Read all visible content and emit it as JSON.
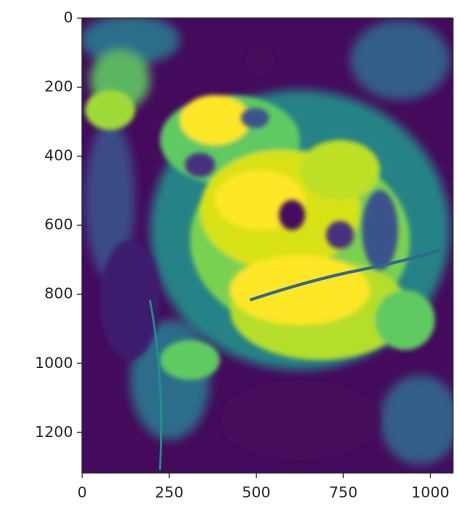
{
  "chart_data": {
    "type": "image",
    "xlim": [
      -0.5,
      1065
    ],
    "ylim": [
      1318,
      -0.5
    ],
    "xticks": [
      0,
      250,
      500,
      750,
      1000
    ],
    "yticks": [
      0,
      200,
      400,
      600,
      800,
      1000,
      1200
    ]
  }
}
